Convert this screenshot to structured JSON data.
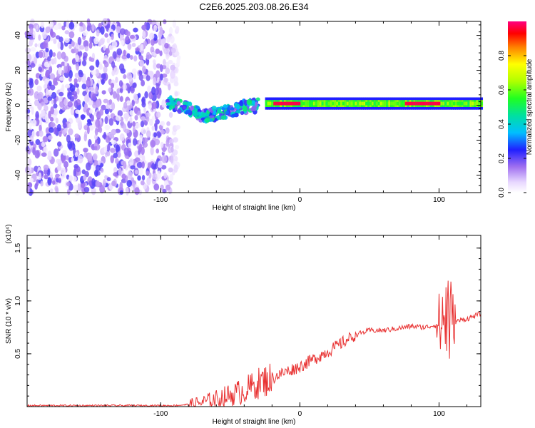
{
  "title": "C2E6.2025.203.08.26.E34",
  "chart_data": [
    {
      "type": "heatmap",
      "title": "C2E6.2025.203.08.26.E34",
      "xlabel": "Height of straight line (km)",
      "ylabel": "Frequency (Hz)",
      "xlim": [
        -196,
        130
      ],
      "ylim": [
        -50,
        48
      ],
      "xticks": [
        "-100",
        "0",
        "100"
      ],
      "yticks": [
        "40",
        "20",
        "0",
        "-20",
        "-40"
      ],
      "colorbar": {
        "label": "Normalized spectral amplitude",
        "range": [
          0,
          1
        ],
        "ticks": [
          "0.0",
          "0.2",
          "0.4",
          "0.6",
          "0.8"
        ]
      },
      "bands": [
        {
          "x_start": -196,
          "x_end": -85,
          "freq_min": -50,
          "freq_max": 48,
          "amplitude": 0.12,
          "pattern": "scattered noise"
        },
        {
          "x_start": -95,
          "x_end": -30,
          "freq_center": [
            2,
            -2,
            -6,
            -5,
            -3,
            -1,
            0
          ],
          "amplitude": 0.35,
          "pattern": "scattered signal"
        },
        {
          "x_start": -25,
          "x_end": 130,
          "freq_center": 1,
          "amplitude": 0.85,
          "pattern": "narrow band"
        }
      ]
    },
    {
      "type": "line",
      "xlabel": "Height of straight line (km)",
      "ylabel": "SNR (10 * v/v)",
      "y_multiplier": "(x10⁴)",
      "xlim": [
        -196,
        130
      ],
      "ylim": [
        0,
        1.62
      ],
      "xticks": [
        "-100",
        "0",
        "100"
      ],
      "yticks": [
        "1.5",
        "1.0",
        "0.5"
      ],
      "series_color": "#e83030",
      "trend": {
        "x": [
          -196,
          -90,
          -80,
          -70,
          -60,
          -50,
          -40,
          -30,
          -20,
          -10,
          0,
          10,
          20,
          30,
          40,
          50,
          60,
          70,
          80,
          90,
          100,
          103,
          105,
          107,
          110,
          120,
          130
        ],
        "y": [
          0.01,
          0.01,
          0.02,
          0.04,
          0.07,
          0.11,
          0.15,
          0.22,
          0.27,
          0.33,
          0.38,
          0.45,
          0.52,
          0.6,
          0.68,
          0.72,
          0.72,
          0.74,
          0.76,
          0.75,
          0.78,
          0.82,
          0.9,
          0.85,
          0.8,
          0.83,
          0.88
        ]
      }
    }
  ]
}
